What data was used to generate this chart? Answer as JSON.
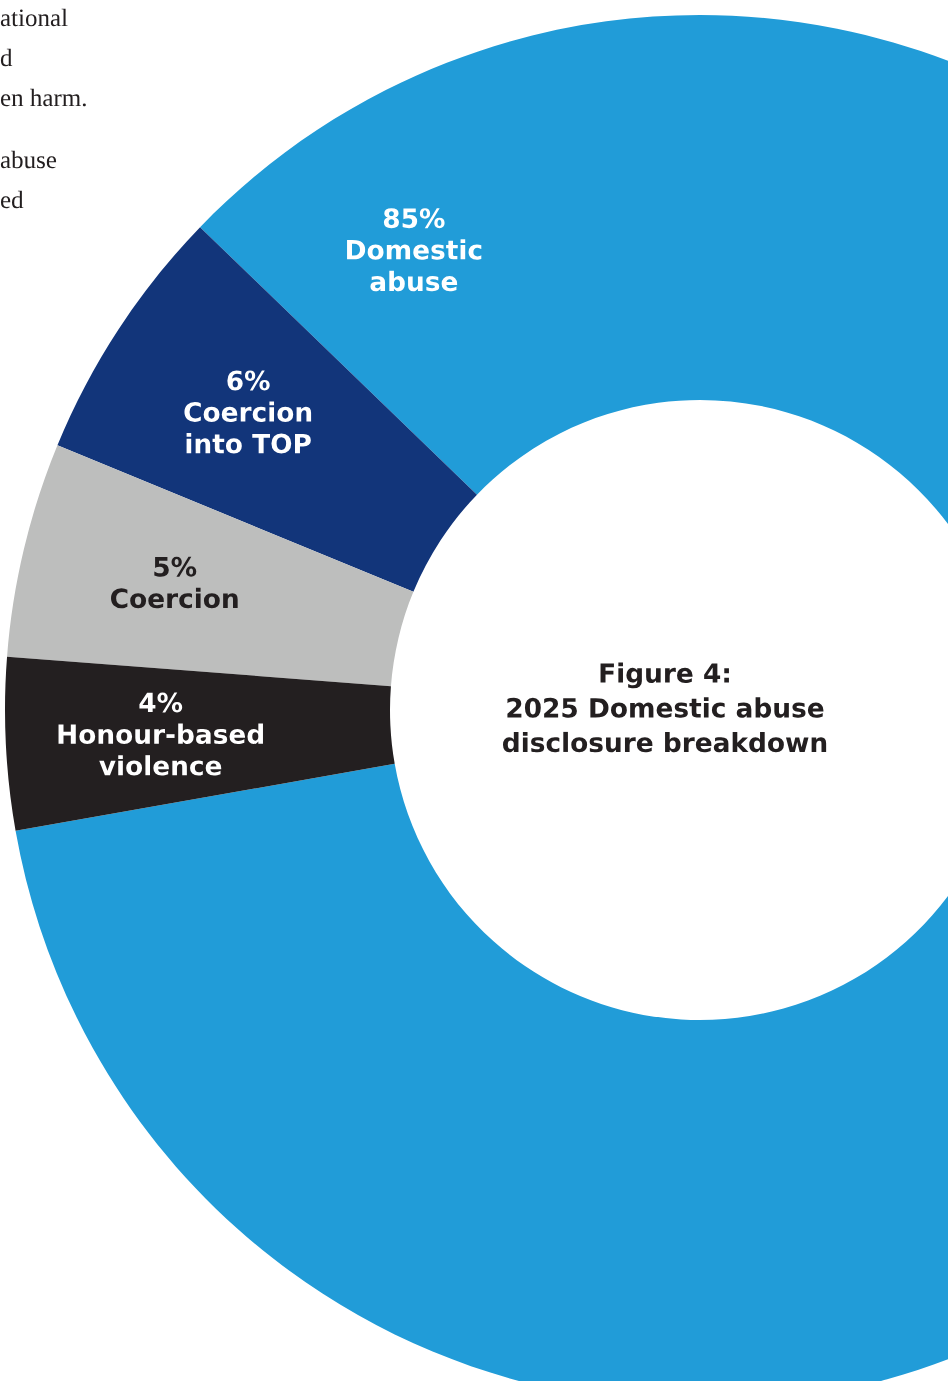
{
  "chart_data": {
    "type": "donut",
    "title": "Figure 4:\n2025 Domestic abuse\ndisclosure breakdown",
    "categories": [
      "Domestic abuse",
      "Coercion into TOP",
      "Coercion",
      "Honour-based violence"
    ],
    "values": [
      85,
      6,
      5,
      4
    ],
    "value_labels": [
      "85%",
      "6%",
      "5%",
      "4%"
    ],
    "colors": [
      "#219cd8",
      "#12357a",
      "#bdbebd",
      "#231f20"
    ],
    "annotations": [
      "ational",
      "d",
      "en harm.",
      "abuse",
      "ed"
    ]
  }
}
